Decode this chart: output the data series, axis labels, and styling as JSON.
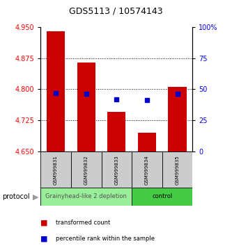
{
  "title": "GDS5113 / 10574143",
  "samples": [
    "GSM999831",
    "GSM999832",
    "GSM999833",
    "GSM999834",
    "GSM999835"
  ],
  "bar_tops": [
    4.94,
    4.865,
    4.745,
    4.695,
    4.805
  ],
  "bar_bottom": 4.65,
  "blue_pct": [
    47,
    46,
    42,
    41,
    46
  ],
  "ylim_left": [
    4.65,
    4.95
  ],
  "ylim_right": [
    0,
    100
  ],
  "yticks_left": [
    4.65,
    4.725,
    4.8,
    4.875,
    4.95
  ],
  "yticks_right": [
    0,
    25,
    50,
    75,
    100
  ],
  "ytick_labels_right": [
    "0",
    "25",
    "50",
    "75",
    "100%"
  ],
  "bar_color": "#cc0000",
  "blue_color": "#0000cc",
  "groups": [
    {
      "label": "Grainyhead-like 2 depletion",
      "samples": [
        0,
        1,
        2
      ],
      "color": "#99ee99",
      "text_color": "#555555"
    },
    {
      "label": "control",
      "samples": [
        3,
        4
      ],
      "color": "#44cc44",
      "text_color": "#000000"
    }
  ],
  "protocol_label": "protocol",
  "legend_items": [
    {
      "color": "#cc0000",
      "label": "transformed count"
    },
    {
      "color": "#0000cc",
      "label": "percentile rank within the sample"
    }
  ],
  "dotted_yticks": [
    4.725,
    4.8,
    4.875
  ],
  "bar_width": 0.6,
  "blue_marker_size": 5,
  "title_fontsize": 9,
  "tick_fontsize": 7,
  "sample_fontsize": 5,
  "group_fontsize": 6,
  "legend_fontsize": 6,
  "protocol_fontsize": 7
}
